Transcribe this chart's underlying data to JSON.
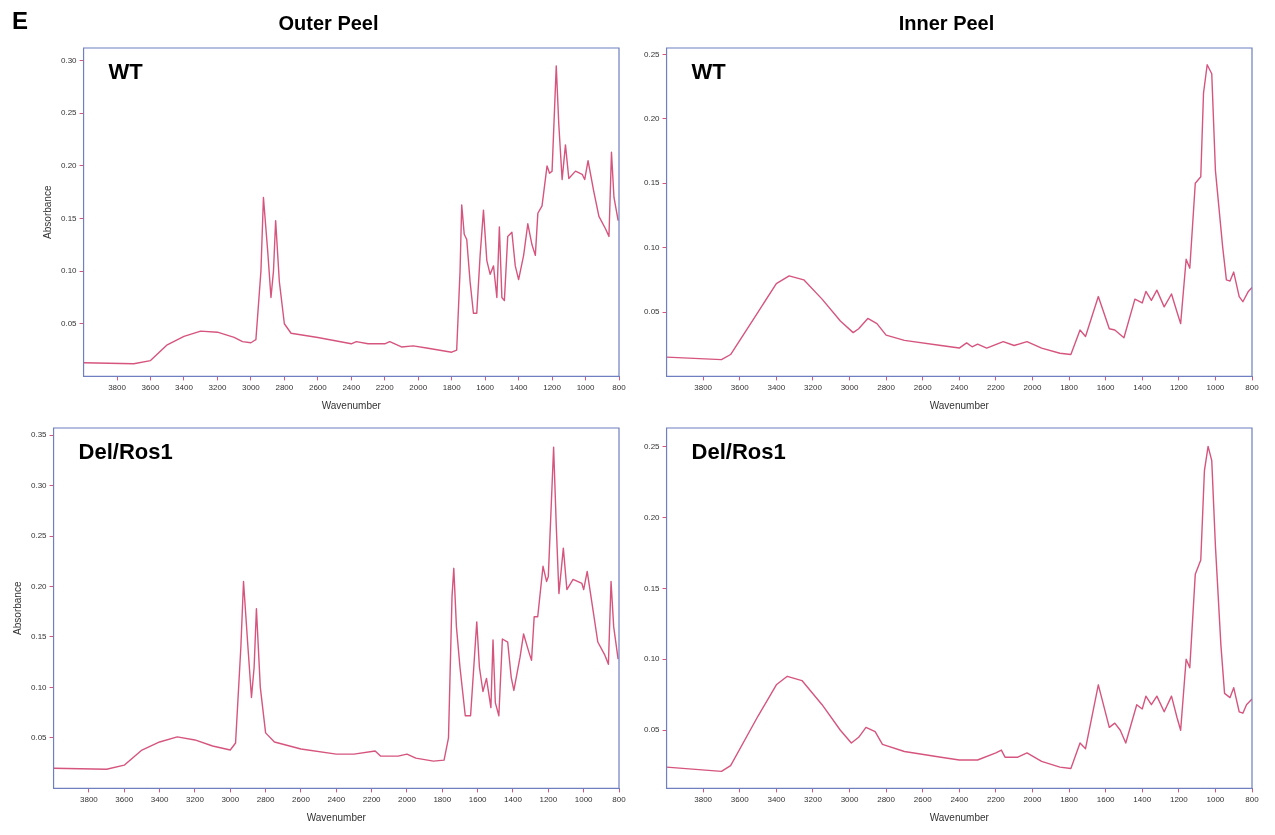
{
  "chart_data": [
    {
      "type": "line",
      "title": "Outer Peel",
      "xlabel": "Wavenumber",
      "ylabel": "Absorbance",
      "annotations": [
        "E",
        "WT"
      ],
      "xlim": [
        4000,
        800
      ],
      "xticks": [
        3800,
        3600,
        3400,
        3200,
        3000,
        2800,
        2600,
        2400,
        2200,
        2000,
        1800,
        1600,
        1400,
        1200,
        1000,
        800
      ],
      "ylim": [
        0,
        0.312
      ],
      "yticks": [
        0.05,
        {
          "value": 0.1,
          "label": "0.10"
        },
        0.15,
        {
          "value": 0.2,
          "label": "0.20"
        },
        0.25,
        {
          "value": 0.3,
          "label": "0.30"
        }
      ],
      "grid": false,
      "legend": false,
      "marker": "none",
      "series": [
        {
          "color": "#d6557e",
          "x": [
            4000,
            3700,
            3600,
            3500,
            3400,
            3300,
            3200,
            3100,
            3050,
            3000,
            2970,
            2940,
            2925,
            2900,
            2880,
            2865,
            2852,
            2830,
            2800,
            2760,
            2600,
            2400,
            2370,
            2300,
            2200,
            2170,
            2100,
            2030,
            1950,
            1800,
            1770,
            1750,
            1740,
            1725,
            1710,
            1690,
            1670,
            1650,
            1630,
            1610,
            1590,
            1570,
            1550,
            1530,
            1515,
            1500,
            1485,
            1465,
            1440,
            1420,
            1400,
            1370,
            1345,
            1320,
            1300,
            1285,
            1260,
            1230,
            1215,
            1200,
            1175,
            1160,
            1140,
            1120,
            1100,
            1060,
            1020,
            1005,
            985,
            950,
            920,
            880,
            860,
            845,
            830,
            805
          ],
          "values": [
            0.013,
            0.012,
            0.015,
            0.03,
            0.038,
            0.043,
            0.042,
            0.037,
            0.033,
            0.032,
            0.035,
            0.1,
            0.17,
            0.12,
            0.075,
            0.1,
            0.148,
            0.09,
            0.05,
            0.041,
            0.037,
            0.031,
            0.033,
            0.031,
            0.031,
            0.033,
            0.028,
            0.029,
            0.027,
            0.023,
            0.025,
            0.1,
            0.163,
            0.135,
            0.13,
            0.09,
            0.06,
            0.06,
            0.115,
            0.158,
            0.11,
            0.097,
            0.105,
            0.075,
            0.142,
            0.075,
            0.072,
            0.133,
            0.137,
            0.105,
            0.092,
            0.115,
            0.145,
            0.125,
            0.115,
            0.155,
            0.162,
            0.2,
            0.193,
            0.195,
            0.295,
            0.24,
            0.187,
            0.22,
            0.188,
            0.195,
            0.192,
            0.187,
            0.205,
            0.175,
            0.152,
            0.14,
            0.133,
            0.213,
            0.17,
            0.148
          ]
        }
      ]
    },
    {
      "type": "line",
      "title": "Inner Peel",
      "xlabel": "Wavenumber",
      "annotations": [
        "WT"
      ],
      "xlim": [
        4000,
        800
      ],
      "xticks": [
        3800,
        3600,
        3400,
        3200,
        3000,
        2800,
        2600,
        2400,
        2200,
        2000,
        1800,
        1600,
        1400,
        1200,
        1000,
        800
      ],
      "ylim": [
        0,
        0.255
      ],
      "yticks": [
        0.05,
        {
          "value": 0.1,
          "label": "0.10"
        },
        0.15,
        {
          "value": 0.2,
          "label": "0.20"
        },
        0.25
      ],
      "grid": false,
      "legend": false,
      "marker": "none",
      "series": [
        {
          "color": "#d6557e",
          "x": [
            4000,
            3700,
            3650,
            3500,
            3400,
            3330,
            3250,
            3150,
            3050,
            2980,
            2950,
            2900,
            2850,
            2800,
            2700,
            2500,
            2400,
            2360,
            2330,
            2300,
            2250,
            2160,
            2100,
            2030,
            1950,
            1850,
            1790,
            1740,
            1710,
            1640,
            1580,
            1550,
            1500,
            1440,
            1400,
            1380,
            1350,
            1320,
            1280,
            1240,
            1210,
            1190,
            1160,
            1140,
            1110,
            1080,
            1065,
            1045,
            1020,
            1000,
            960,
            940,
            920,
            900,
            870,
            850,
            820,
            800
          ],
          "values": [
            0.015,
            0.013,
            0.017,
            0.05,
            0.072,
            0.078,
            0.075,
            0.06,
            0.043,
            0.034,
            0.037,
            0.045,
            0.041,
            0.032,
            0.028,
            0.024,
            0.022,
            0.026,
            0.023,
            0.025,
            0.022,
            0.027,
            0.024,
            0.027,
            0.022,
            0.018,
            0.017,
            0.036,
            0.031,
            0.062,
            0.037,
            0.036,
            0.03,
            0.06,
            0.057,
            0.066,
            0.059,
            0.067,
            0.054,
            0.064,
            0.05,
            0.041,
            0.091,
            0.084,
            0.15,
            0.155,
            0.22,
            0.242,
            0.235,
            0.16,
            0.1,
            0.075,
            0.074,
            0.081,
            0.062,
            0.058,
            0.066,
            0.069
          ]
        }
      ]
    },
    {
      "type": "line",
      "xlabel": "Wavenumber",
      "ylabel": "Absorbance",
      "annotations": [
        "Del/Ros1"
      ],
      "xlim": [
        4000,
        800
      ],
      "xticks": [
        3800,
        3600,
        3400,
        3200,
        3000,
        2800,
        2600,
        2400,
        2200,
        2000,
        1800,
        1600,
        1400,
        1200,
        1000,
        800
      ],
      "ylim": [
        0,
        0.357
      ],
      "yticks": [
        0.05,
        {
          "value": 0.1,
          "label": "0.10"
        },
        0.15,
        {
          "value": 0.2,
          "label": "0.20"
        },
        0.25,
        {
          "value": 0.3,
          "label": "0.30"
        },
        0.35
      ],
      "grid": false,
      "legend": false,
      "marker": "none",
      "series": [
        {
          "color": "#d6557e",
          "x": [
            4000,
            3700,
            3600,
            3500,
            3400,
            3300,
            3200,
            3100,
            3000,
            2970,
            2940,
            2925,
            2900,
            2880,
            2865,
            2852,
            2830,
            2800,
            2750,
            2600,
            2400,
            2300,
            2180,
            2150,
            2050,
            2000,
            1950,
            1850,
            1790,
            1765,
            1745,
            1735,
            1720,
            1700,
            1670,
            1640,
            1620,
            1605,
            1590,
            1570,
            1550,
            1525,
            1513,
            1500,
            1480,
            1460,
            1430,
            1410,
            1395,
            1360,
            1340,
            1310,
            1295,
            1280,
            1260,
            1230,
            1210,
            1200,
            1170,
            1155,
            1140,
            1115,
            1095,
            1060,
            1010,
            1000,
            980,
            950,
            920,
            880,
            860,
            845,
            830,
            805
          ],
          "values": [
            0.02,
            0.019,
            0.023,
            0.038,
            0.046,
            0.051,
            0.048,
            0.042,
            0.038,
            0.045,
            0.14,
            0.205,
            0.14,
            0.09,
            0.12,
            0.178,
            0.1,
            0.055,
            0.046,
            0.039,
            0.034,
            0.034,
            0.037,
            0.032,
            0.032,
            0.034,
            0.03,
            0.027,
            0.028,
            0.05,
            0.19,
            0.218,
            0.16,
            0.12,
            0.072,
            0.072,
            0.125,
            0.165,
            0.12,
            0.096,
            0.109,
            0.08,
            0.147,
            0.085,
            0.072,
            0.148,
            0.145,
            0.11,
            0.097,
            0.13,
            0.153,
            0.135,
            0.127,
            0.17,
            0.17,
            0.22,
            0.205,
            0.21,
            0.338,
            0.26,
            0.193,
            0.238,
            0.197,
            0.207,
            0.203,
            0.197,
            0.215,
            0.18,
            0.145,
            0.132,
            0.123,
            0.205,
            0.16,
            0.128
          ]
        }
      ]
    },
    {
      "type": "line",
      "xlabel": "Wavenumber",
      "annotations": [
        "Del/Ros1"
      ],
      "xlim": [
        4000,
        800
      ],
      "xticks": [
        3800,
        3600,
        3400,
        3200,
        3000,
        2800,
        2600,
        2400,
        2200,
        2000,
        1800,
        1600,
        1400,
        1200,
        1000,
        800
      ],
      "ylim": [
        0.009,
        0.263
      ],
      "yticks": [
        0.05,
        {
          "value": 0.1,
          "label": "0.10"
        },
        0.15,
        {
          "value": 0.2,
          "label": "0.20"
        },
        0.25
      ],
      "grid": false,
      "legend": false,
      "marker": "none",
      "series": [
        {
          "color": "#d6557e",
          "x": [
            4000,
            3700,
            3650,
            3500,
            3400,
            3340,
            3260,
            3150,
            3050,
            2990,
            2950,
            2910,
            2860,
            2820,
            2700,
            2500,
            2400,
            2300,
            2200,
            2170,
            2150,
            2080,
            2030,
            1990,
            1950,
            1850,
            1790,
            1740,
            1710,
            1640,
            1580,
            1550,
            1520,
            1490,
            1430,
            1400,
            1380,
            1350,
            1320,
            1280,
            1240,
            1210,
            1190,
            1160,
            1140,
            1110,
            1080,
            1060,
            1040,
            1020,
            1000,
            970,
            950,
            920,
            900,
            870,
            850,
            830,
            800
          ],
          "values": [
            0.024,
            0.021,
            0.025,
            0.06,
            0.082,
            0.088,
            0.085,
            0.068,
            0.05,
            0.041,
            0.045,
            0.052,
            0.049,
            0.04,
            0.035,
            0.031,
            0.029,
            0.029,
            0.034,
            0.036,
            0.031,
            0.031,
            0.034,
            0.031,
            0.028,
            0.024,
            0.023,
            0.041,
            0.037,
            0.082,
            0.052,
            0.055,
            0.05,
            0.041,
            0.068,
            0.065,
            0.074,
            0.068,
            0.074,
            0.063,
            0.074,
            0.059,
            0.05,
            0.1,
            0.094,
            0.16,
            0.17,
            0.233,
            0.25,
            0.24,
            0.18,
            0.11,
            0.076,
            0.073,
            0.08,
            0.063,
            0.062,
            0.068,
            0.072
          ]
        }
      ]
    }
  ]
}
